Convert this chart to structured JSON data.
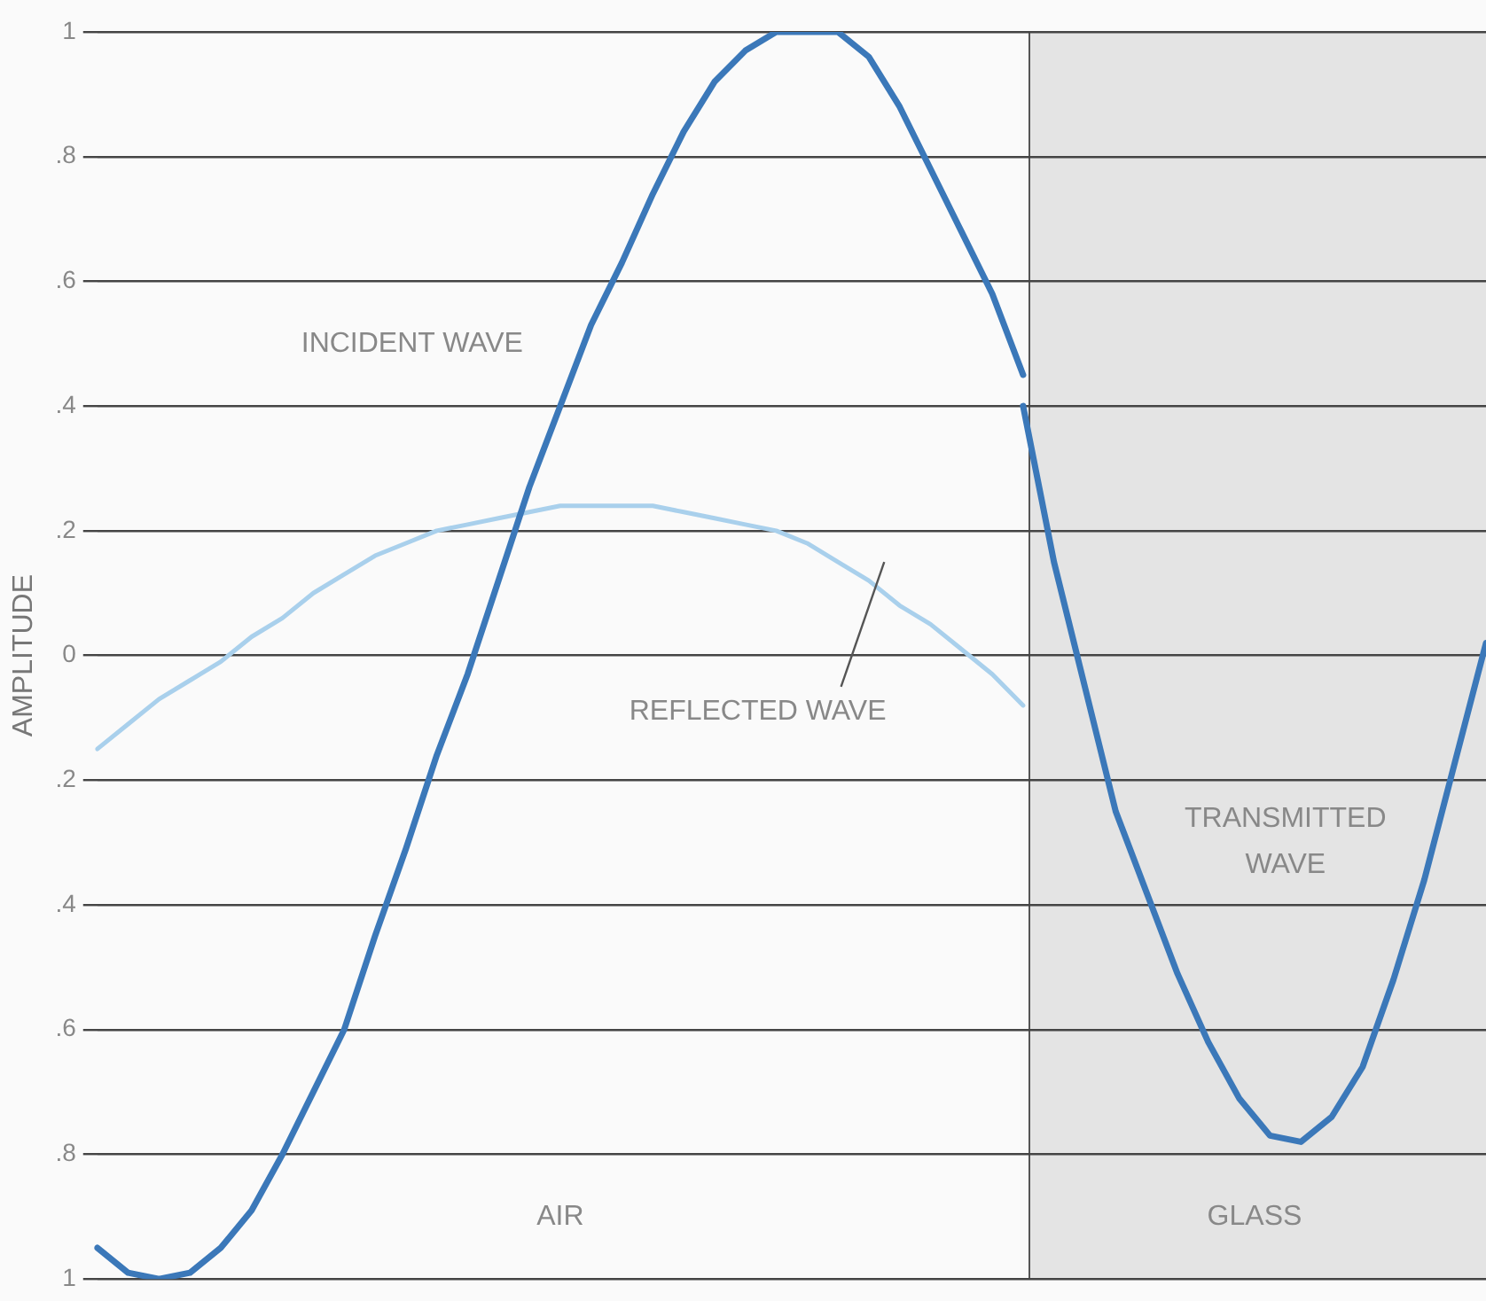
{
  "chart_data": {
    "type": "line",
    "ylabel": "AMPLITUDE",
    "categories": [
      null,
      null,
      null,
      null,
      null,
      null,
      null,
      null,
      null,
      null,
      null,
      null,
      null,
      null,
      null,
      null,
      null,
      null,
      null,
      null,
      null,
      null,
      null,
      null,
      null,
      null,
      null,
      null,
      null,
      null,
      null,
      null,
      null,
      null,
      null,
      null,
      null,
      null,
      null,
      null,
      null,
      null,
      null,
      null,
      null,
      null
    ],
    "series": [
      {
        "name": "INCIDENT WAVE",
        "color": "#3b78b9",
        "values": [
          -0.95,
          -0.99,
          -1.0,
          -0.99,
          -0.95,
          -0.89,
          -0.8,
          -0.7,
          -0.6,
          -0.45,
          -0.31,
          -0.16,
          -0.03,
          0.12,
          0.27,
          0.4,
          0.53,
          0.63,
          0.74,
          0.84,
          0.92,
          0.97,
          1.0,
          1.0,
          1.0,
          0.96,
          0.88,
          0.78,
          0.68,
          0.58,
          0.45,
          null,
          null,
          null,
          null,
          null,
          null,
          null,
          null,
          null,
          null,
          null,
          null,
          null,
          null,
          null
        ]
      },
      {
        "name": "REFLECTED WAVE",
        "color": "#a9d0ec",
        "values": [
          -0.15,
          -0.11,
          -0.07,
          -0.04,
          -0.01,
          0.03,
          0.06,
          0.1,
          0.13,
          0.16,
          0.18,
          0.2,
          0.21,
          0.22,
          0.23,
          0.24,
          0.24,
          0.24,
          0.24,
          0.23,
          0.22,
          0.21,
          0.2,
          0.18,
          0.15,
          0.12,
          0.08,
          0.05,
          0.01,
          -0.03,
          -0.08,
          null,
          null,
          null,
          null,
          null,
          null,
          null,
          null,
          null,
          null,
          null,
          null,
          null,
          null,
          null
        ]
      },
      {
        "name": "TRANSMITTED WAVE",
        "color": "#3b78b9",
        "values": [
          null,
          null,
          null,
          null,
          null,
          null,
          null,
          null,
          null,
          null,
          null,
          null,
          null,
          null,
          null,
          null,
          null,
          null,
          null,
          null,
          null,
          null,
          null,
          null,
          null,
          null,
          null,
          null,
          null,
          null,
          0.4,
          0.15,
          -0.05,
          -0.25,
          -0.38,
          -0.51,
          -0.62,
          -0.71,
          -0.77,
          -0.78,
          -0.74,
          -0.66,
          -0.52,
          -0.36,
          -0.17,
          0.02
        ]
      }
    ],
    "ylim": [
      -1,
      1
    ],
    "yticks": [
      1,
      {
        "value": 0.8,
        "label": ".8"
      },
      {
        "value": 0.6,
        "label": ".6"
      },
      {
        "value": 0.4,
        "label": ".4"
      },
      {
        "value": 0.2,
        "label": ".2"
      },
      0,
      {
        "value": -0.2,
        "label": ".2"
      },
      {
        "value": -0.4,
        "label": ".4"
      },
      {
        "value": -0.6,
        "label": ".6"
      },
      {
        "value": -0.8,
        "label": ".8"
      },
      {
        "value": -1,
        "label": "1"
      }
    ],
    "annotations": [
      "AIR",
      "GLASS"
    ],
    "grid": "y",
    "legend": false,
    "tick_labels": "y",
    "marker": "none",
    "line_style": "solid"
  }
}
